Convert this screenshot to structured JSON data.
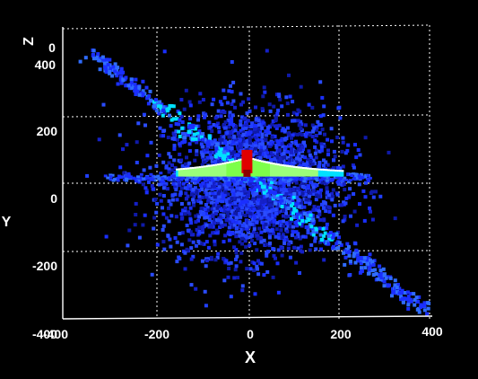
{
  "chart_data": {
    "type": "scatter",
    "view": "3D histogram of point density",
    "xlabel": "X",
    "ylabel": "Y",
    "zlabel": "Z",
    "xlim": [
      -400,
      400
    ],
    "ylim": [
      -400,
      400
    ],
    "x_ticks": [
      "-400",
      "-200",
      "0",
      "200",
      "400"
    ],
    "y_ticks": [
      "-400",
      "-200",
      "0",
      "200",
      "400"
    ],
    "z_ticks": [
      "0"
    ],
    "grid": true,
    "colors": {
      "background": "#000000",
      "axes": "#ffffff",
      "grid": "#ffffff",
      "low_density": "#1a2fff",
      "mid_density": "#00e0ff",
      "high_density": "#7dff4a",
      "peak": "#e00000"
    },
    "features": [
      {
        "name": "diagonal band",
        "from": [
          -350,
          400
        ],
        "to": [
          380,
          -380
        ]
      },
      {
        "name": "horizontal ridge",
        "from": [
          -160,
          20
        ],
        "to": [
          200,
          20
        ]
      },
      {
        "name": "central peak",
        "at": [
          -5,
          30
        ]
      }
    ]
  }
}
